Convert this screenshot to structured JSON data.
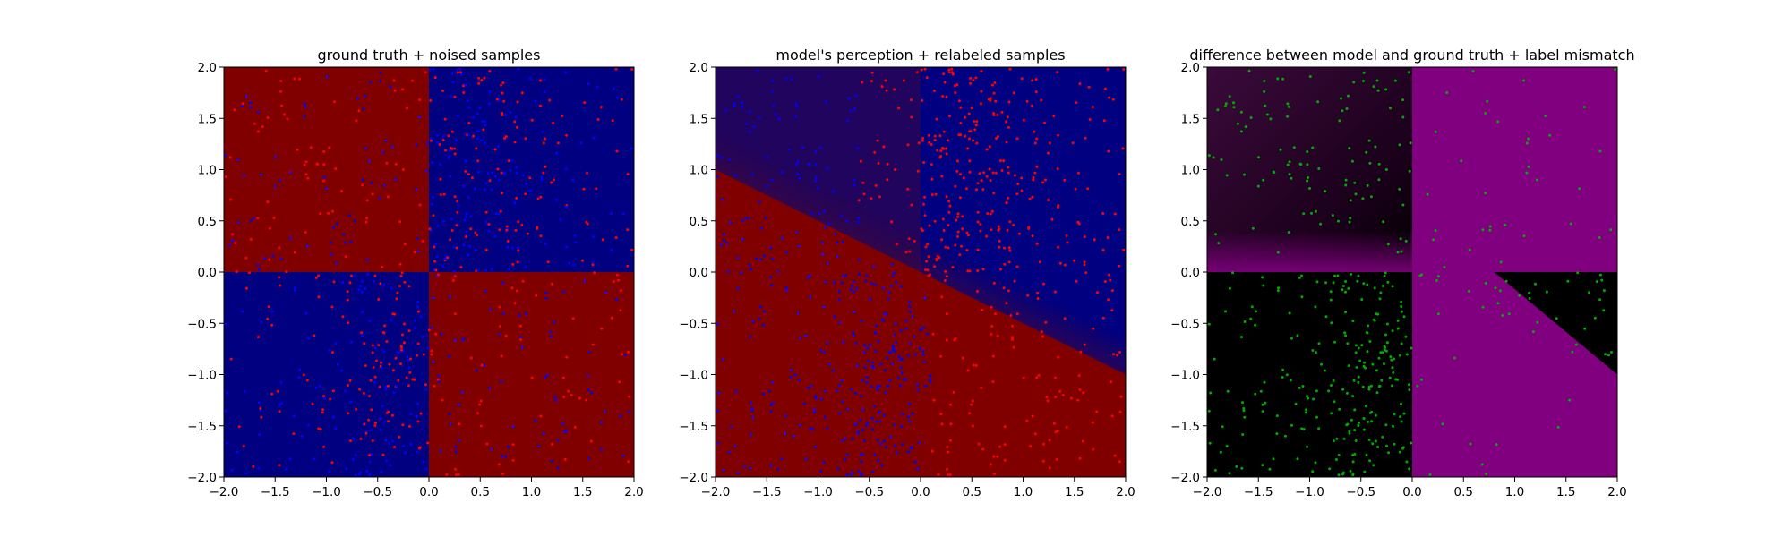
{
  "chart_data": [
    {
      "type": "heatmap",
      "title": "ground truth + noised samples",
      "xlim": [
        -2.0,
        2.0
      ],
      "ylim": [
        -2.0,
        2.0
      ],
      "xticks": [
        "−2.0",
        "−1.5",
        "−1.0",
        "−0.5",
        "0.0",
        "0.5",
        "1.0",
        "1.5",
        "2.0"
      ],
      "yticks": [
        "−2.0",
        "−1.5",
        "−1.0",
        "−0.5",
        "0.0",
        "0.5",
        "1.0",
        "1.5",
        "2.0"
      ],
      "grid": false,
      "regions": [
        {
          "quadrant": "top-left",
          "x": [
            -2.0,
            0.0
          ],
          "y": [
            0.0,
            2.0
          ],
          "color": "#800000"
        },
        {
          "quadrant": "top-right",
          "x": [
            0.0,
            2.0
          ],
          "y": [
            0.0,
            2.0
          ],
          "color": "#000080"
        },
        {
          "quadrant": "bottom-left",
          "x": [
            -2.0,
            0.0
          ],
          "y": [
            -2.0,
            0.0
          ],
          "color": "#000080"
        },
        {
          "quadrant": "bottom-right",
          "x": [
            0.0,
            2.0
          ],
          "y": [
            -2.0,
            0.0
          ],
          "color": "#800000"
        }
      ],
      "sample_series": [
        {
          "color": "#ff0000",
          "approx_count": 400
        },
        {
          "color": "#0000ff",
          "approx_count": 400
        }
      ]
    },
    {
      "type": "heatmap",
      "title": "model's perception + relabeled samples",
      "xlim": [
        -2.0,
        2.0
      ],
      "ylim": [
        -2.0,
        2.0
      ],
      "xticks": [
        "−2.0",
        "−1.5",
        "−1.0",
        "−0.5",
        "0.0",
        "0.5",
        "1.0",
        "1.5",
        "2.0"
      ],
      "yticks": [
        "−2.0",
        "−1.5",
        "−1.0",
        "−0.5",
        "0.0",
        "0.5",
        "1.0",
        "1.5",
        "2.0"
      ],
      "grid": false,
      "colors": {
        "low": "#800000",
        "high": "#000080",
        "blend": "#3d0840"
      },
      "decision_boundary": {
        "slope": -0.5,
        "intercept": 0.0
      },
      "sample_series": [
        {
          "color": "#ff0000",
          "approx_count": 400
        },
        {
          "color": "#0000ff",
          "approx_count": 400
        }
      ]
    },
    {
      "type": "heatmap",
      "title": "difference between model and ground truth + label mismatch",
      "xlim": [
        -2.0,
        2.0
      ],
      "ylim": [
        -2.0,
        2.0
      ],
      "xticks": [
        "−2.0",
        "−1.5",
        "−1.0",
        "−0.5",
        "0.0",
        "0.5",
        "1.0",
        "1.5",
        "2.0"
      ],
      "yticks": [
        "−2.0",
        "−1.5",
        "−1.0",
        "−0.5",
        "0.0",
        "0.5",
        "1.0",
        "1.5",
        "2.0"
      ],
      "grid": false,
      "colors": {
        "zero": "#000000",
        "max": "#800080"
      },
      "sample_series": [
        {
          "color": "#00aa00",
          "approx_count": 400
        }
      ]
    }
  ]
}
